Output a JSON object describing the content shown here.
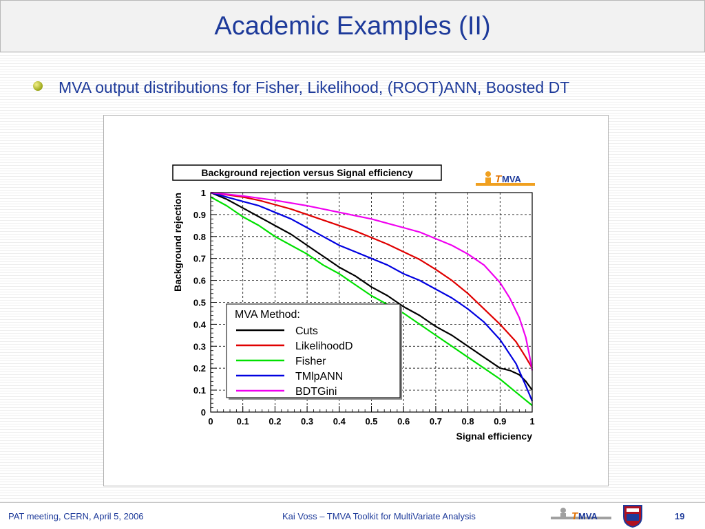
{
  "slide": {
    "title": "Academic Examples (II)",
    "bullet": "MVA output distributions for Fisher, Likelihood, (ROOT)ANN, Boosted DT"
  },
  "footer": {
    "left": "PAT meeting, CERN, April 5, 2006",
    "center": "Kai Voss  – TMVA Toolkit for MultiVariate Analysis",
    "page": "19",
    "logo_t": "T",
    "logo_rest": "MVA"
  },
  "chart_logo": {
    "t": "T",
    "rest": "MVA"
  },
  "chart_data": {
    "type": "line",
    "title": "Background rejection versus Signal efficiency",
    "xlabel": "Signal efficiency",
    "ylabel": "Background rejection",
    "xlim": [
      0,
      1
    ],
    "ylim": [
      0,
      1
    ],
    "xticks": [
      "0",
      "0.1",
      "0.2",
      "0.3",
      "0.4",
      "0.5",
      "0.6",
      "0.7",
      "0.8",
      "0.9",
      "1"
    ],
    "yticks": [
      "0",
      "0.1",
      "0.2",
      "0.3",
      "0.4",
      "0.5",
      "0.6",
      "0.7",
      "0.8",
      "0.9",
      "1"
    ],
    "grid": true,
    "legend": {
      "title": "MVA Method:",
      "position": "lower-left"
    },
    "series": [
      {
        "name": "Cuts",
        "color": "#000000",
        "x": [
          0,
          0.05,
          0.1,
          0.15,
          0.2,
          0.25,
          0.3,
          0.35,
          0.4,
          0.45,
          0.5,
          0.55,
          0.6,
          0.65,
          0.7,
          0.75,
          0.8,
          0.85,
          0.9,
          0.93,
          0.96,
          0.98,
          1.0
        ],
        "y": [
          1.0,
          0.97,
          0.93,
          0.89,
          0.85,
          0.81,
          0.76,
          0.71,
          0.66,
          0.62,
          0.57,
          0.53,
          0.48,
          0.44,
          0.39,
          0.35,
          0.3,
          0.25,
          0.2,
          0.19,
          0.17,
          0.14,
          0.1
        ]
      },
      {
        "name": "LikelihoodD",
        "color": "#e00000",
        "x": [
          0,
          0.05,
          0.1,
          0.15,
          0.2,
          0.25,
          0.3,
          0.35,
          0.4,
          0.45,
          0.5,
          0.55,
          0.6,
          0.65,
          0.7,
          0.75,
          0.8,
          0.85,
          0.9,
          0.95,
          0.98,
          1.0
        ],
        "y": [
          1.0,
          0.99,
          0.98,
          0.965,
          0.945,
          0.925,
          0.9,
          0.875,
          0.85,
          0.825,
          0.795,
          0.765,
          0.73,
          0.695,
          0.65,
          0.6,
          0.54,
          0.47,
          0.4,
          0.32,
          0.25,
          0.2
        ]
      },
      {
        "name": "Fisher",
        "color": "#00e000",
        "x": [
          0,
          0.05,
          0.1,
          0.15,
          0.2,
          0.25,
          0.3,
          0.35,
          0.4,
          0.45,
          0.5,
          0.55,
          0.6,
          0.65,
          0.7,
          0.75,
          0.8,
          0.85,
          0.9,
          0.95,
          1.0
        ],
        "y": [
          0.98,
          0.94,
          0.89,
          0.85,
          0.8,
          0.76,
          0.72,
          0.67,
          0.63,
          0.58,
          0.53,
          0.49,
          0.45,
          0.4,
          0.35,
          0.3,
          0.25,
          0.2,
          0.15,
          0.09,
          0.03
        ]
      },
      {
        "name": "TMlpANN",
        "color": "#0000e0",
        "x": [
          0,
          0.05,
          0.1,
          0.15,
          0.2,
          0.25,
          0.3,
          0.35,
          0.4,
          0.45,
          0.5,
          0.55,
          0.6,
          0.65,
          0.7,
          0.75,
          0.8,
          0.85,
          0.9,
          0.95,
          0.98,
          1.0
        ],
        "y": [
          1.0,
          0.98,
          0.96,
          0.94,
          0.91,
          0.88,
          0.84,
          0.8,
          0.76,
          0.73,
          0.7,
          0.67,
          0.63,
          0.6,
          0.56,
          0.52,
          0.47,
          0.41,
          0.33,
          0.22,
          0.12,
          0.05
        ]
      },
      {
        "name": "BDTGini",
        "color": "#f000f0",
        "x": [
          0,
          0.1,
          0.2,
          0.3,
          0.4,
          0.5,
          0.55,
          0.6,
          0.65,
          0.7,
          0.75,
          0.8,
          0.85,
          0.9,
          0.93,
          0.96,
          0.98,
          0.99,
          1.0
        ],
        "y": [
          1.0,
          0.985,
          0.965,
          0.94,
          0.91,
          0.88,
          0.86,
          0.84,
          0.82,
          0.79,
          0.76,
          0.72,
          0.67,
          0.59,
          0.52,
          0.43,
          0.34,
          0.27,
          0.19
        ]
      }
    ]
  }
}
